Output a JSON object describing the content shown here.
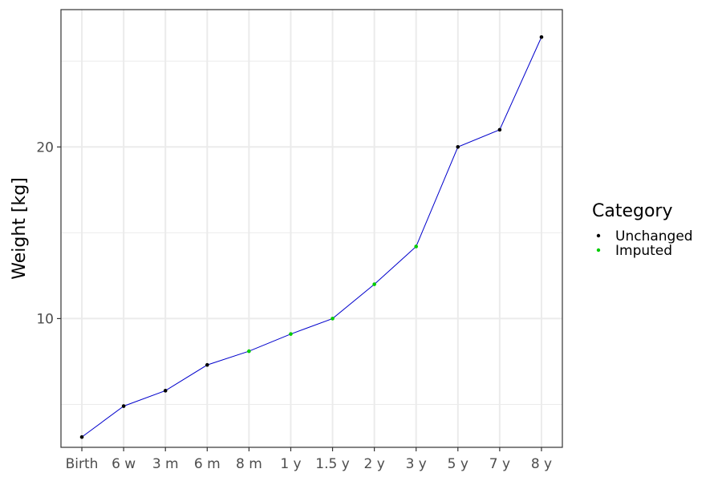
{
  "chart_data": {
    "type": "line",
    "title": "",
    "xlabel": "",
    "ylabel": "Weight [kg]",
    "categories": [
      "Birth",
      "6 w",
      "3 m",
      "6 m",
      "8 m",
      "1 y",
      "1.5 y",
      "2 y",
      "3 y",
      "5 y",
      "7 y",
      "8 y"
    ],
    "series": [
      {
        "values": [
          3.1,
          4.9,
          5.8,
          7.3,
          8.1,
          9.1,
          10.0,
          12.0,
          14.2,
          20.0,
          21.0,
          26.4
        ],
        "point_category": [
          "Unchanged",
          "Unchanged",
          "Unchanged",
          "Unchanged",
          "Imputed",
          "Imputed",
          "Imputed",
          "Imputed",
          "Imputed",
          "Unchanged",
          "Unchanged",
          "Unchanged"
        ],
        "line_color": "#0000cc"
      }
    ],
    "ylim": [
      2.5,
      28.0
    ],
    "yticks": [
      10,
      20
    ],
    "grid": true,
    "legend": {
      "title": "Category",
      "placement": "right",
      "entries": [
        {
          "label": "Unchanged",
          "color": "#000000"
        },
        {
          "label": "Imputed",
          "color": "#00cc00"
        }
      ]
    }
  }
}
